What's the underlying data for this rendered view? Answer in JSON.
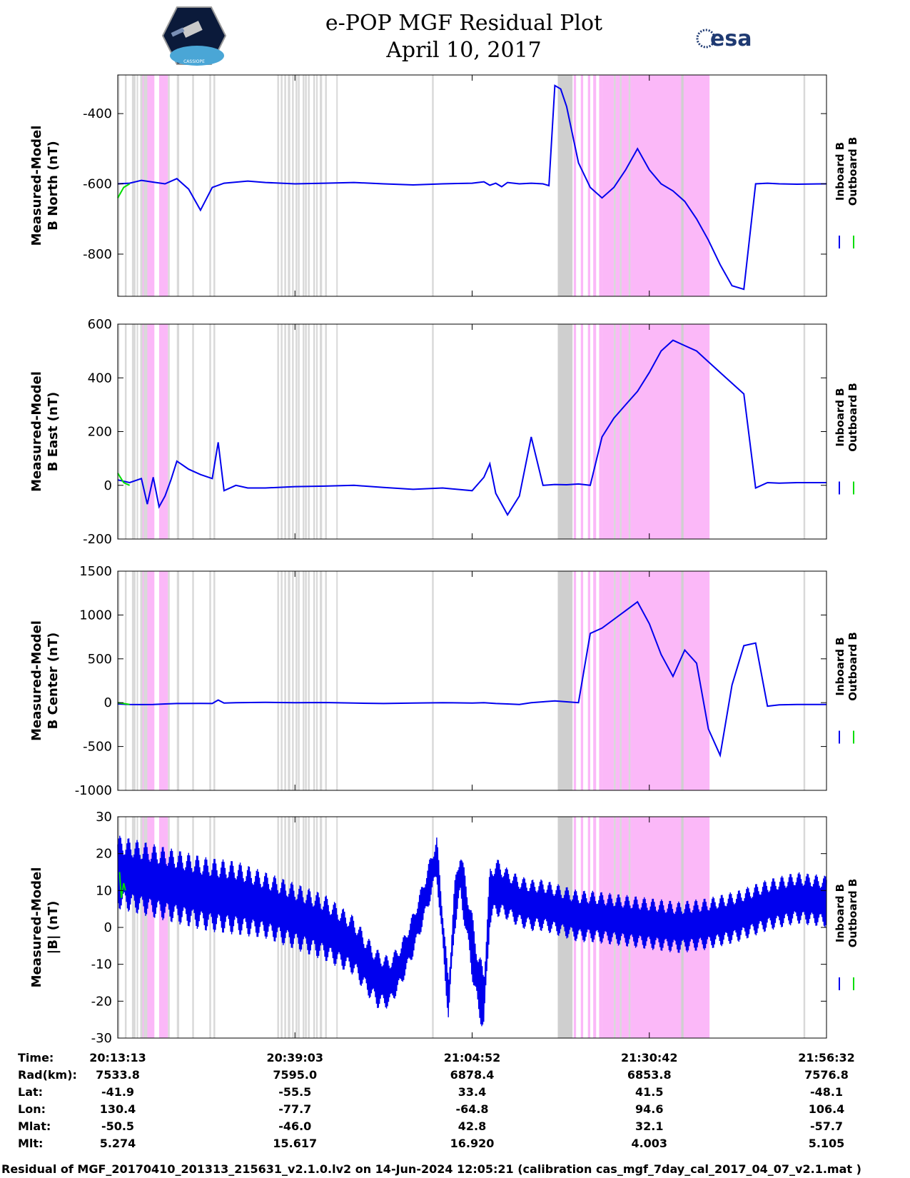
{
  "header": {
    "title_line1": "e-POP MGF Residual Plot",
    "title_line2": "April 10, 2017",
    "mission_logo_text": "CASSIOPE",
    "agency_logo_text": "esa"
  },
  "colors": {
    "inboard": "#0000ee",
    "outboard": "#00dd00",
    "gray_band": "#d9d9d9",
    "pink_band": "#fbb8f8"
  },
  "legend": {
    "inboard_label": "Inboard B",
    "outboard_label": "Outboard B"
  },
  "chart_data": [
    {
      "type": "line",
      "ylabel_line1": "Measured-Model",
      "ylabel_line2": "B North (nT)",
      "ylim": [
        -920,
        -290
      ],
      "yticks": [
        -800,
        -600,
        -400
      ],
      "series": [
        {
          "name": "Inboard B",
          "t": [
            0,
            2,
            4,
            6,
            8,
            10,
            12,
            14,
            16,
            18,
            20,
            22,
            25,
            30,
            35,
            40,
            45,
            50,
            55,
            60,
            62,
            63,
            64,
            65,
            66,
            68,
            70,
            72,
            73,
            74,
            75,
            76,
            77,
            78,
            80,
            82,
            84,
            86,
            88,
            90,
            92,
            94,
            96,
            98,
            100,
            102,
            104,
            106,
            108,
            110,
            112,
            115,
            120
          ],
          "values": [
            -600,
            -598,
            -590,
            -595,
            -600,
            -585,
            -615,
            -675,
            -610,
            -598,
            -595,
            -592,
            -596,
            -600,
            -598,
            -596,
            -600,
            -603,
            -600,
            -598,
            -594,
            -604,
            -598,
            -608,
            -596,
            -600,
            -598,
            -600,
            -605,
            -320,
            -330,
            -380,
            -460,
            -540,
            -610,
            -640,
            -610,
            -560,
            -500,
            -560,
            -600,
            -620,
            -650,
            -700,
            -760,
            -830,
            -890,
            -900,
            -600,
            -598,
            -600,
            -601,
            -600
          ]
        },
        {
          "name": "Outboard B",
          "t": [
            0,
            1,
            2
          ],
          "values": [
            -640,
            -610,
            -600
          ]
        }
      ]
    },
    {
      "type": "line",
      "ylabel_line1": "Measured-Model",
      "ylabel_line2": "B East (nT)",
      "ylim": [
        -200,
        600
      ],
      "yticks": [
        -200,
        0,
        200,
        400,
        600
      ],
      "series": [
        {
          "name": "Inboard B",
          "t": [
            0,
            2,
            4,
            5,
            6,
            7,
            8,
            9,
            10,
            12,
            14,
            16,
            17,
            18,
            20,
            22,
            25,
            30,
            35,
            40,
            45,
            50,
            55,
            60,
            62,
            63,
            64,
            66,
            68,
            70,
            72,
            74,
            76,
            78,
            80,
            82,
            84,
            86,
            88,
            90,
            92,
            94,
            96,
            98,
            100,
            102,
            104,
            106,
            108,
            110,
            112,
            115,
            120
          ],
          "values": [
            20,
            10,
            25,
            -70,
            30,
            -80,
            -40,
            20,
            90,
            60,
            40,
            25,
            160,
            -20,
            0,
            -10,
            -10,
            -5,
            -3,
            0,
            -8,
            -15,
            -10,
            -20,
            30,
            80,
            -30,
            -110,
            -40,
            180,
            0,
            3,
            2,
            5,
            0,
            180,
            250,
            300,
            350,
            420,
            500,
            540,
            520,
            500,
            460,
            420,
            380,
            340,
            -10,
            10,
            8,
            10,
            10
          ]
        },
        {
          "name": "Outboard B",
          "t": [
            0,
            1,
            2
          ],
          "values": [
            45,
            10,
            0
          ]
        }
      ]
    },
    {
      "type": "line",
      "ylabel_line1": "Measured-Model",
      "ylabel_line2": "B Center (nT)",
      "ylim": [
        -1000,
        1500
      ],
      "yticks": [
        -1000,
        -500,
        0,
        500,
        1000,
        1500
      ],
      "series": [
        {
          "name": "Inboard B",
          "t": [
            0,
            2,
            4,
            6,
            8,
            10,
            14,
            16,
            17,
            18,
            20,
            25,
            30,
            35,
            40,
            45,
            50,
            55,
            60,
            62,
            64,
            66,
            68,
            70,
            72,
            74,
            76,
            78,
            80,
            82,
            84,
            86,
            88,
            90,
            92,
            94,
            96,
            98,
            100,
            102,
            104,
            106,
            108,
            110,
            112,
            115,
            120
          ],
          "values": [
            -15,
            -20,
            -22,
            -20,
            -15,
            -10,
            -8,
            -10,
            30,
            -5,
            0,
            3,
            0,
            2,
            -5,
            -10,
            -5,
            0,
            -5,
            0,
            -10,
            -15,
            -20,
            0,
            10,
            20,
            10,
            0,
            790,
            850,
            950,
            1050,
            1150,
            900,
            550,
            300,
            600,
            450,
            -300,
            -600,
            200,
            650,
            680,
            -40,
            -25,
            -20,
            -20
          ]
        },
        {
          "name": "Outboard B",
          "t": [
            0,
            1,
            2
          ],
          "values": [
            0,
            -10,
            -20
          ]
        }
      ]
    },
    {
      "type": "line",
      "ylabel_line1": "Measured-Model",
      "ylabel_line2": "|B| (nT)",
      "ylim": [
        -30,
        30
      ],
      "yticks": [
        -30,
        -20,
        -10,
        0,
        10,
        20,
        30
      ],
      "series": [
        {
          "name": "Inboard B",
          "t": [
            0,
            5,
            10,
            15,
            20,
            25,
            30,
            35,
            40,
            42,
            44,
            46,
            48,
            50,
            52,
            54,
            55,
            56,
            57,
            58,
            60,
            61,
            62,
            63,
            64,
            66,
            68,
            70,
            72,
            74,
            76,
            78,
            80,
            85,
            90,
            95,
            100,
            105,
            110,
            115,
            120
          ],
          "values": [
            15,
            13,
            11,
            9,
            8,
            6,
            3,
            0,
            -5,
            -10,
            -14,
            -15,
            -10,
            -2,
            8,
            19,
            0,
            -20,
            5,
            15,
            -5,
            -15,
            -20,
            8,
            11,
            9,
            7,
            6,
            6,
            5,
            4,
            3,
            3,
            2,
            1,
            0,
            1,
            3,
            6,
            8,
            7
          ],
          "amplitude": [
            10,
            10,
            10,
            10,
            10,
            9,
            9,
            9,
            8,
            8,
            8,
            7,
            6,
            6,
            6,
            6,
            6,
            6,
            7,
            7,
            9,
            9,
            9,
            8,
            8,
            7,
            7,
            7,
            7,
            7,
            7,
            7,
            7,
            7,
            7,
            7,
            7,
            7,
            7,
            7,
            7
          ]
        },
        {
          "name": "Outboard B",
          "t": [
            0.3,
            0.6,
            1,
            1.3
          ],
          "values": [
            15,
            8,
            12,
            10
          ]
        }
      ]
    }
  ],
  "shaded_bands": {
    "gray": [
      [
        0,
        0.3
      ],
      [
        1.2,
        1.5
      ],
      [
        2.4,
        3
      ],
      [
        3.2,
        3.4
      ],
      [
        3.8,
        4.2
      ],
      [
        4.4,
        5
      ],
      [
        8.5,
        8.8
      ],
      [
        10,
        10.4
      ],
      [
        12.6,
        12.9
      ],
      [
        15.5,
        15.8
      ],
      [
        16.2,
        16.5
      ],
      [
        27,
        27.3
      ],
      [
        27.6,
        27.9
      ],
      [
        28.2,
        28.5
      ],
      [
        28.8,
        29.2
      ],
      [
        29.5,
        29.8
      ],
      [
        30.1,
        30.4
      ],
      [
        30.5,
        30.8
      ],
      [
        31.3,
        31.6
      ],
      [
        31.7,
        32
      ],
      [
        32.2,
        32.5
      ],
      [
        33.1,
        33.4
      ],
      [
        33.6,
        33.8
      ],
      [
        34.2,
        34.6
      ],
      [
        35.1,
        35.4
      ],
      [
        37,
        37.2
      ],
      [
        53.2,
        53.5
      ],
      [
        74.7,
        75
      ],
      [
        75.3,
        75.6
      ],
      [
        84,
        84.3
      ],
      [
        85,
        85.3
      ],
      [
        86.5,
        86.8
      ],
      [
        116.1,
        116.4
      ]
    ],
    "pink": [
      [
        4,
        6.2
      ],
      [
        7,
        8.5
      ],
      [
        77.2,
        77.6
      ],
      [
        78.4,
        78.8
      ],
      [
        79.6,
        80
      ],
      [
        80.5,
        81
      ],
      [
        81.5,
        82
      ],
      [
        82,
        100.2
      ]
    ],
    "gray_dark": [
      [
        74.5,
        77
      ],
      [
        95.4,
        95.8
      ]
    ]
  },
  "xaxis": {
    "duration_min": 120,
    "tick_positions": [
      0,
      30,
      60,
      90,
      120
    ]
  },
  "info_table": {
    "row_labels": [
      "Time:",
      "Rad(km):",
      "Lat:",
      "Lon:",
      "Mlat:",
      "Mlt:"
    ],
    "columns": [
      [
        "20:13:13",
        "7533.8",
        "-41.9",
        "130.4",
        "-50.5",
        "5.274"
      ],
      [
        "20:39:03",
        "7595.0",
        "-55.5",
        "-77.7",
        "-46.0",
        "15.617"
      ],
      [
        "21:04:52",
        "6878.4",
        "33.4",
        "-64.8",
        "42.8",
        "16.920"
      ],
      [
        "21:30:42",
        "6853.8",
        "41.5",
        "94.6",
        "32.1",
        "4.003"
      ],
      [
        "21:56:32",
        "7576.8",
        "-48.1",
        "106.4",
        "-57.7",
        "5.105"
      ]
    ]
  },
  "footer_text": "Residual of MGF_20170410_201313_215631_v2.1.0.lv2 on 14-Jun-2024 12:05:21 (calibration cas_mgf_7day_cal_2017_04_07_v2.1.mat )"
}
